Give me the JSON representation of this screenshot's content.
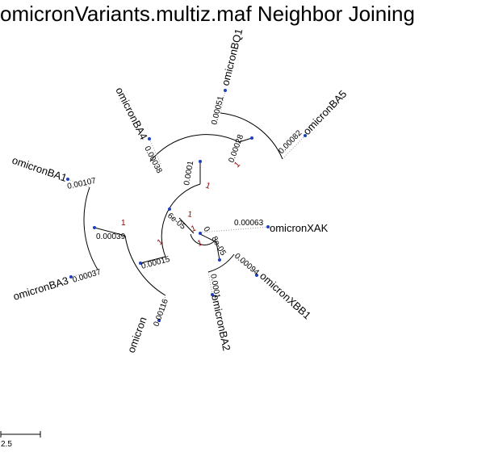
{
  "title": "omicronVariants.multiz.maf Neighbor Joining",
  "tips": {
    "bq1": "omicronBQ1",
    "ba5": "omicronBA5",
    "ba4": "omicronBA4",
    "ba1": "omicronBA1",
    "ba3": "omicronBA3",
    "xak": "omicronXAK",
    "xbb1": "omicronXBB1",
    "ba2": "omicronBA2",
    "omicron": "omicron"
  },
  "branch_lengths": {
    "bq1": "0.00051",
    "ba5": "0.00082",
    "bq1_ba5": "0.00028",
    "ba4": "0.00038",
    "ba4_group": "0.0001",
    "ba1": "0.00107",
    "ba3": "0.00037",
    "ba1_ba3": "0.00039",
    "omicron": "0.00116",
    "left_group": "0.00015",
    "inner_left": "6e-05",
    "xak": "0.00063",
    "xbb1": "0.00094",
    "ba2": "0.0001",
    "ba2_xbb1": "8e-05",
    "root": "0"
  },
  "support": {
    "bq1_ba5": "1",
    "ba4_group": "1",
    "ba1_ba3": "1",
    "left_group": "1",
    "inner_left": "1",
    "root": "1",
    "ba2_xbb1": "1"
  },
  "scale_bar": {
    "label": "2.5"
  },
  "colors": {
    "node": "#1f3fbf",
    "support": "#8b0000",
    "dotted": "#999999"
  }
}
